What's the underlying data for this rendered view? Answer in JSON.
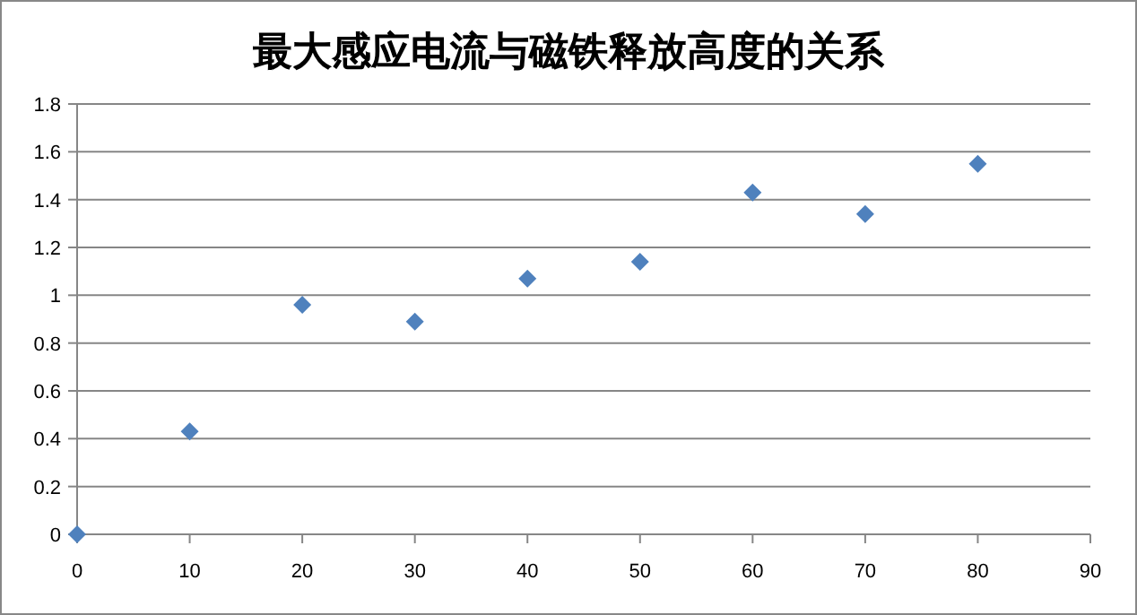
{
  "chart_data": {
    "type": "scatter",
    "title": "最大感应电流与磁铁释放高度的关系",
    "x": [
      0,
      10,
      20,
      30,
      40,
      50,
      60,
      70,
      80
    ],
    "series": [
      {
        "color": "#4f81bd",
        "values": [
          0,
          0.43,
          0.96,
          0.89,
          1.07,
          1.14,
          1.43,
          1.34,
          1.55
        ]
      }
    ],
    "xlim": [
      0,
      90
    ],
    "xticks": [
      0,
      10,
      20,
      30,
      40,
      50,
      60,
      70,
      80,
      90
    ],
    "ylim": [
      0,
      1.8
    ],
    "yticks": [
      0,
      0.2,
      0.4,
      0.6,
      0.8,
      1,
      1.2,
      1.4,
      1.6,
      1.8
    ],
    "grid": "y",
    "marker": "diamond"
  }
}
